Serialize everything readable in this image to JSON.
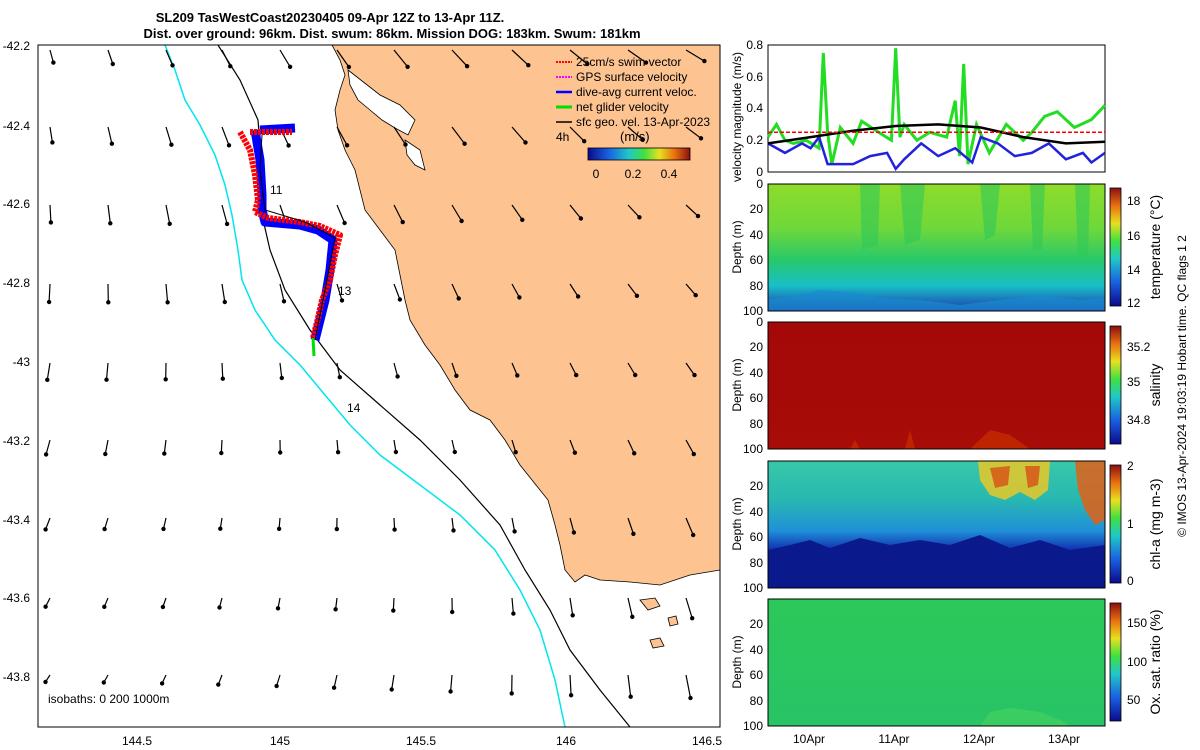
{
  "title": {
    "line1": "SL209 TasWestCoast20230405 09-Apr 12Z to 13-Apr 11Z.",
    "line2": "Dist. over ground: 96km. Dist. swum: 86km. Mission DOG: 183km. Swum: 181km"
  },
  "map": {
    "x_ticks": [
      "144.5",
      "145",
      "145.5",
      "146",
      "146.5"
    ],
    "y_ticks": [
      "-42.2",
      "-42.4",
      "-42.6",
      "-42.8",
      "-43",
      "-43.2",
      "-43.4",
      "-43.6",
      "-43.8"
    ],
    "isobaths_label": "isobaths: 0   200  1000m",
    "day_labels": [
      "11",
      "13",
      "14"
    ],
    "legend": {
      "items": [
        {
          "label": "25cm/s swim vector",
          "color": "#ff0000"
        },
        {
          "label": "GPS surface velocity",
          "color": "#ff00ff"
        },
        {
          "label": "dive-avg current veloc.",
          "color": "#0000ff"
        },
        {
          "label": "net glider velocity",
          "color": "#00dd00"
        },
        {
          "label": "sfc geo. vel. 13-Apr-2023",
          "color": "#000000"
        }
      ],
      "time_label": "4h",
      "unit_label": "(m/s)",
      "colorbar_ticks": [
        "0",
        "0.2",
        "0.4"
      ]
    },
    "colors": {
      "land": "#fdc391",
      "isobath_200": "#00e5ee",
      "isobath_1000": "#000000"
    }
  },
  "chart_data": [
    {
      "type": "line",
      "title": "velocity magnitude",
      "ylabel": "velocity magnitude (m/s)",
      "ylim": [
        0,
        0.8
      ],
      "y_ticks": [
        "0",
        "0.2",
        "0.4",
        "0.6",
        "0.8"
      ],
      "x_range_days": [
        9.5,
        13.46
      ],
      "series": [
        {
          "name": "net glider velocity",
          "color": "#22dd22",
          "x": [
            9.5,
            9.6,
            9.7,
            9.8,
            9.95,
            10.1,
            10.15,
            10.2,
            10.25,
            10.35,
            10.5,
            10.6,
            10.8,
            10.95,
            11.0,
            11.05,
            11.1,
            11.25,
            11.4,
            11.6,
            11.7,
            11.75,
            11.8,
            11.85,
            11.95,
            12.1,
            12.3,
            12.5,
            12.6,
            12.75,
            12.9,
            13.1,
            13.3,
            13.46
          ],
          "y": [
            0.22,
            0.3,
            0.2,
            0.18,
            0.2,
            0.15,
            0.75,
            0.25,
            0.05,
            0.28,
            0.18,
            0.32,
            0.25,
            0.2,
            0.78,
            0.22,
            0.3,
            0.2,
            0.25,
            0.22,
            0.45,
            0.1,
            0.68,
            0.05,
            0.3,
            0.12,
            0.3,
            0.2,
            0.25,
            0.35,
            0.38,
            0.28,
            0.33,
            0.42
          ]
        },
        {
          "name": "dive-avg current veloc.",
          "color": "#2222dd",
          "x": [
            9.5,
            9.7,
            9.9,
            10.0,
            10.1,
            10.2,
            10.3,
            10.5,
            10.7,
            10.9,
            11.0,
            11.1,
            11.3,
            11.5,
            11.7,
            11.9,
            12.0,
            12.2,
            12.4,
            12.6,
            12.8,
            13.0,
            13.2,
            13.3,
            13.46
          ],
          "y": [
            0.18,
            0.12,
            0.18,
            0.15,
            0.22,
            0.05,
            0.05,
            0.05,
            0.1,
            0.12,
            0.02,
            0.08,
            0.18,
            0.1,
            0.15,
            0.06,
            0.22,
            0.18,
            0.1,
            0.12,
            0.18,
            0.08,
            0.12,
            0.06,
            0.12
          ]
        },
        {
          "name": "sfc geo. vel.",
          "color": "#000000",
          "x": [
            9.5,
            10.0,
            10.5,
            11.0,
            11.5,
            12.0,
            12.5,
            13.0,
            13.46
          ],
          "y": [
            0.18,
            0.22,
            0.26,
            0.29,
            0.3,
            0.28,
            0.22,
            0.18,
            0.19
          ]
        },
        {
          "name": "25cm/s swim vector",
          "color": "#ff0000",
          "style": "dashed",
          "x": [
            9.5,
            13.46
          ],
          "y": [
            0.25,
            0.25
          ]
        }
      ]
    },
    {
      "type": "heatmap",
      "ylabel": "Depth (m)",
      "clabel": "temperature (°C)",
      "ylim": [
        100,
        0
      ],
      "y_ticks": [
        "0",
        "20",
        "40",
        "60",
        "80",
        "100"
      ],
      "clim": [
        12,
        18.5
      ],
      "c_ticks": [
        "12",
        "14",
        "16",
        "18"
      ],
      "colors": [
        "#1c2aa8",
        "#00c8d8",
        "#22cc55",
        "#88dd22"
      ]
    },
    {
      "type": "heatmap",
      "ylabel": "Depth (m)",
      "clabel": "salinity",
      "ylim": [
        100,
        0
      ],
      "y_ticks": [
        "0",
        "20",
        "40",
        "60",
        "80",
        "100"
      ],
      "clim": [
        34.7,
        35.3
      ],
      "c_ticks": [
        "34.8",
        "35",
        "35.2"
      ],
      "colors": [
        "#a50a0a",
        "#c82800"
      ]
    },
    {
      "type": "heatmap",
      "ylabel": "Depth (m)",
      "clabel": "chl-a (mg m-3)",
      "ylim": [
        100,
        0
      ],
      "y_ticks": [
        "20",
        "40",
        "60",
        "80",
        "100"
      ],
      "clim": [
        0,
        2
      ],
      "c_ticks": [
        "0",
        "1",
        "2"
      ],
      "colors": [
        "#0a1a8c",
        "#20a0e0",
        "#30c890",
        "#e8d020",
        "#d04010"
      ]
    },
    {
      "type": "heatmap",
      "ylabel": "Depth (m)",
      "clabel": "Ox. sat. ratio (%)",
      "ylim": [
        100,
        0
      ],
      "y_ticks": [
        "20",
        "40",
        "60",
        "80",
        "100"
      ],
      "clim": [
        30,
        170
      ],
      "c_ticks": [
        "50",
        "100",
        "150"
      ],
      "x_ticks": [
        "10Apr",
        "11Apr",
        "12Apr",
        "13Apr"
      ],
      "colors": [
        "#22c860",
        "#2fcc55"
      ]
    }
  ],
  "footer": "© IMOS 13-Apr-2024 19:03:19 Hobart time. QC flags 1  2"
}
